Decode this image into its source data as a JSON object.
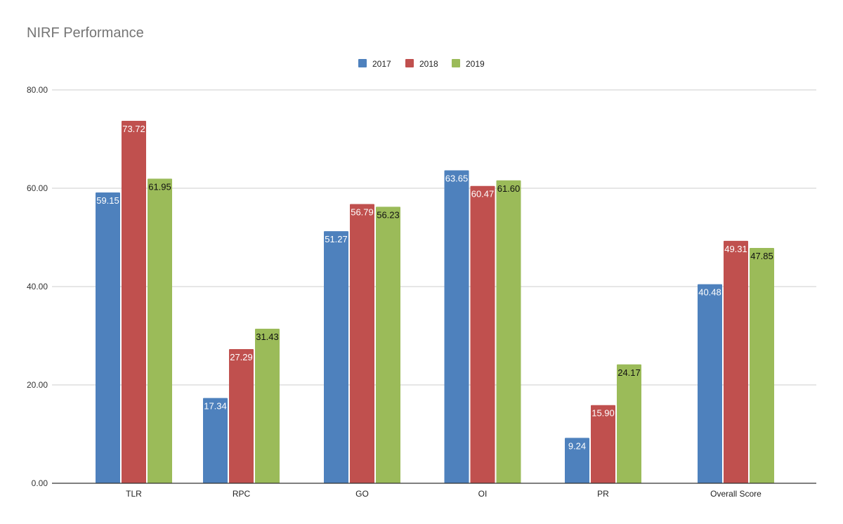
{
  "chart_data": {
    "type": "bar",
    "title": "NIRF Performance",
    "xlabel": "",
    "ylabel": "",
    "categories": [
      "TLR",
      "RPC",
      "GO",
      "OI",
      "PR",
      "Overall Score"
    ],
    "series": [
      {
        "name": "2017",
        "color": "#4e81bd",
        "values": [
          59.15,
          17.34,
          51.27,
          63.65,
          9.24,
          40.48
        ],
        "labels": [
          "59.15",
          "17.34",
          "51.27",
          "63.65",
          "9.24",
          "40.48"
        ],
        "label_color": "#ffffff"
      },
      {
        "name": "2018",
        "color": "#c0504e",
        "values": [
          73.72,
          27.29,
          56.79,
          60.47,
          15.9,
          49.31
        ],
        "labels": [
          "73.72",
          "27.29",
          "56.79",
          "60.47",
          "15.90",
          "49.31"
        ],
        "label_color": "#ffffff"
      },
      {
        "name": "2019",
        "color": "#9bbb59",
        "values": [
          61.95,
          31.43,
          56.23,
          61.6,
          24.17,
          47.85
        ],
        "labels": [
          "61.95",
          "31.43",
          "56.23",
          "61.60",
          "24.17",
          "47.85"
        ],
        "label_color": "#111111"
      }
    ],
    "ylim": [
      0,
      80
    ],
    "yticks": [
      0,
      20,
      40,
      60,
      80
    ],
    "ytick_labels": [
      "0.00",
      "20.00",
      "40.00",
      "60.00",
      "80.00"
    ],
    "grid": true,
    "legend_position": "top"
  }
}
